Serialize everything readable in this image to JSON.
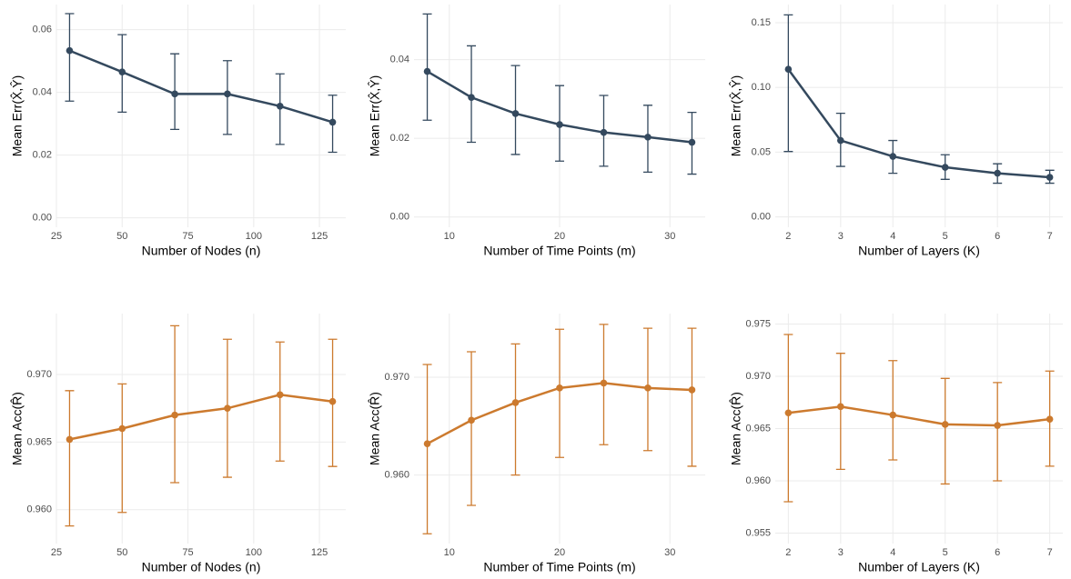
{
  "chart_data": [
    {
      "type": "line",
      "x": [
        30,
        50,
        70,
        90,
        110,
        130
      ],
      "xlabel": "Number of Nodes (n)",
      "ylabel": "Mean Err(X̂,Ŷ)",
      "xlim": [
        25,
        135
      ],
      "xticks": [
        25,
        50,
        75,
        100,
        125
      ],
      "ylim": [
        -0.003,
        0.068
      ],
      "yticks": [
        {
          "value": 0,
          "label": "0.00"
        },
        {
          "value": 0.02,
          "label": "0.02"
        },
        {
          "value": 0.04,
          "label": "0.04"
        },
        {
          "value": 0.06,
          "label": "0.06"
        }
      ],
      "grid": true,
      "series": [
        {
          "color": "#34495e",
          "values": [
            0.0533,
            0.0465,
            0.0395,
            0.0395,
            0.0356,
            0.0305
          ],
          "lower": [
            0.0372,
            0.0337,
            0.0282,
            0.0266,
            0.0234,
            0.0209
          ],
          "upper": [
            0.0651,
            0.0584,
            0.0523,
            0.0501,
            0.0459,
            0.0391
          ]
        }
      ]
    },
    {
      "type": "line",
      "x": [
        8,
        12,
        16,
        20,
        24,
        28,
        32
      ],
      "xlabel": "Number of Time Points (m)",
      "ylabel": "Mean Err(X̂,Ŷ)",
      "xlim": [
        6.8,
        33.2
      ],
      "xticks": [
        10,
        20,
        30
      ],
      "ylim": [
        -0.0026,
        0.054
      ],
      "yticks": [
        {
          "value": 0,
          "label": "0.00"
        },
        {
          "value": 0.02,
          "label": "0.02"
        },
        {
          "value": 0.04,
          "label": "0.04"
        }
      ],
      "grid": true,
      "series": [
        {
          "color": "#34495e",
          "values": [
            0.037,
            0.0304,
            0.0263,
            0.0235,
            0.0215,
            0.0203,
            0.019
          ],
          "lower": [
            0.0246,
            0.019,
            0.0159,
            0.0142,
            0.0129,
            0.0114,
            0.0109
          ],
          "upper": [
            0.0516,
            0.0435,
            0.0385,
            0.0334,
            0.0309,
            0.0284,
            0.0266
          ]
        }
      ]
    },
    {
      "type": "line",
      "x": [
        2,
        3,
        4,
        5,
        6,
        7
      ],
      "xlabel": "Number of Layers (K)",
      "ylabel": "Mean Err(X̂,Ŷ)",
      "xlim": [
        1.75,
        7.25
      ],
      "xticks": [
        2,
        3,
        4,
        5,
        6,
        7
      ],
      "ylim": [
        -0.008,
        0.164
      ],
      "yticks": [
        {
          "value": 0,
          "label": "0.00"
        },
        {
          "value": 0.05,
          "label": "0.05"
        },
        {
          "value": 0.1,
          "label": "0.10"
        },
        {
          "value": 0.15,
          "label": "0.15"
        }
      ],
      "grid": true,
      "series": [
        {
          "color": "#34495e",
          "values": [
            0.114,
            0.059,
            0.0467,
            0.0383,
            0.0337,
            0.0306
          ],
          "lower": [
            0.0505,
            0.039,
            0.0337,
            0.029,
            0.026,
            0.026
          ],
          "upper": [
            0.156,
            0.08,
            0.059,
            0.048,
            0.041,
            0.036
          ]
        }
      ]
    },
    {
      "type": "line",
      "x": [
        30,
        50,
        70,
        90,
        110,
        130
      ],
      "xlabel": "Number of Nodes (n)",
      "ylabel": "Mean Acc(R̂)",
      "xlim": [
        25,
        135
      ],
      "xticks": [
        25,
        50,
        75,
        100,
        125
      ],
      "ylim": [
        0.9575,
        0.9745
      ],
      "yticks": [
        {
          "value": 0.96,
          "label": "0.960"
        },
        {
          "value": 0.965,
          "label": "0.965"
        },
        {
          "value": 0.97,
          "label": "0.970"
        }
      ],
      "grid": true,
      "series": [
        {
          "color": "#cc7a2e",
          "values": [
            0.9652,
            0.966,
            0.967,
            0.9675,
            0.9685,
            0.968
          ],
          "lower": [
            0.9588,
            0.9598,
            0.962,
            0.9624,
            0.9636,
            0.9632
          ],
          "upper": [
            0.9688,
            0.9693,
            0.9736,
            0.9726,
            0.9724,
            0.9726
          ]
        }
      ]
    },
    {
      "type": "line",
      "x": [
        8,
        12,
        16,
        20,
        24,
        28,
        32
      ],
      "xlabel": "Number of Time Points (m)",
      "ylabel": "Mean Acc(R̂)",
      "xlim": [
        6.8,
        33.2
      ],
      "xticks": [
        10,
        20,
        30
      ],
      "ylim": [
        0.953,
        0.9765
      ],
      "yticks": [
        {
          "value": 0.96,
          "label": "0.960"
        },
        {
          "value": 0.97,
          "label": "0.970"
        }
      ],
      "grid": true,
      "series": [
        {
          "color": "#cc7a2e",
          "values": [
            0.9632,
            0.9656,
            0.9674,
            0.9689,
            0.9694,
            0.9689,
            0.9687
          ],
          "lower": [
            0.954,
            0.9569,
            0.96,
            0.9618,
            0.9631,
            0.9625,
            0.9609
          ],
          "upper": [
            0.9713,
            0.9726,
            0.9734,
            0.9749,
            0.9754,
            0.975,
            0.975
          ]
        }
      ]
    },
    {
      "type": "line",
      "x": [
        2,
        3,
        4,
        5,
        6,
        7
      ],
      "xlabel": "Number of Layers (K)",
      "ylabel": "Mean Acc(R̂)",
      "xlim": [
        1.75,
        7.25
      ],
      "xticks": [
        2,
        3,
        4,
        5,
        6,
        7
      ],
      "ylim": [
        0.954,
        0.976
      ],
      "yticks": [
        {
          "value": 0.955,
          "label": "0.955"
        },
        {
          "value": 0.96,
          "label": "0.960"
        },
        {
          "value": 0.965,
          "label": "0.965"
        },
        {
          "value": 0.97,
          "label": "0.970"
        },
        {
          "value": 0.975,
          "label": "0.975"
        }
      ],
      "grid": true,
      "series": [
        {
          "color": "#cc7a2e",
          "values": [
            0.9665,
            0.9671,
            0.9663,
            0.9654,
            0.9653,
            0.9659
          ],
          "lower": [
            0.958,
            0.9611,
            0.962,
            0.9597,
            0.96,
            0.9614
          ],
          "upper": [
            0.974,
            0.9722,
            0.9715,
            0.9698,
            0.9694,
            0.9705
          ]
        }
      ]
    }
  ]
}
